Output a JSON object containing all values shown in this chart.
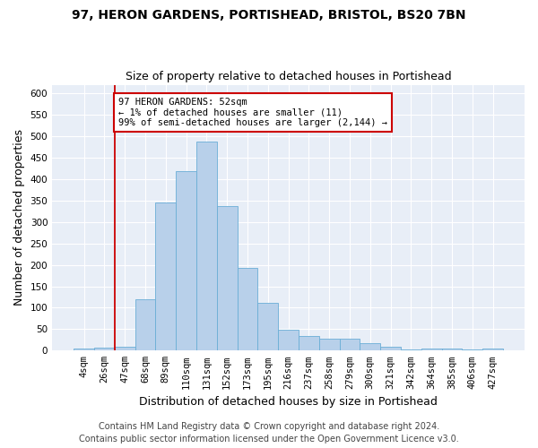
{
  "title1": "97, HERON GARDENS, PORTISHEAD, BRISTOL, BS20 7BN",
  "title2": "Size of property relative to detached houses in Portishead",
  "xlabel": "Distribution of detached houses by size in Portishead",
  "ylabel": "Number of detached properties",
  "categories": [
    "4sqm",
    "26sqm",
    "47sqm",
    "68sqm",
    "89sqm",
    "110sqm",
    "131sqm",
    "152sqm",
    "173sqm",
    "195sqm",
    "216sqm",
    "237sqm",
    "258sqm",
    "279sqm",
    "300sqm",
    "321sqm",
    "342sqm",
    "364sqm",
    "385sqm",
    "406sqm",
    "427sqm"
  ],
  "values": [
    5,
    6,
    8,
    120,
    345,
    418,
    487,
    338,
    192,
    111,
    49,
    35,
    27,
    27,
    18,
    10,
    3,
    5,
    4,
    3,
    5
  ],
  "bar_color": "#b8d0ea",
  "bar_edge_color": "#6aaed6",
  "vline_color": "#cc0000",
  "annotation_text": "97 HERON GARDENS: 52sqm\n← 1% of detached houses are smaller (11)\n99% of semi-detached houses are larger (2,144) →",
  "annotation_box_color": "#ffffff",
  "annotation_box_edge": "#cc0000",
  "footer1": "Contains HM Land Registry data © Crown copyright and database right 2024.",
  "footer2": "Contains public sector information licensed under the Open Government Licence v3.0.",
  "ylim": [
    0,
    620
  ],
  "yticks": [
    0,
    50,
    100,
    150,
    200,
    250,
    300,
    350,
    400,
    450,
    500,
    550,
    600
  ],
  "bg_color": "#e8eef7",
  "grid_color": "#ffffff",
  "title1_fontsize": 10,
  "title2_fontsize": 9,
  "axis_label_fontsize": 9,
  "tick_fontsize": 7.5,
  "footer_fontsize": 7
}
